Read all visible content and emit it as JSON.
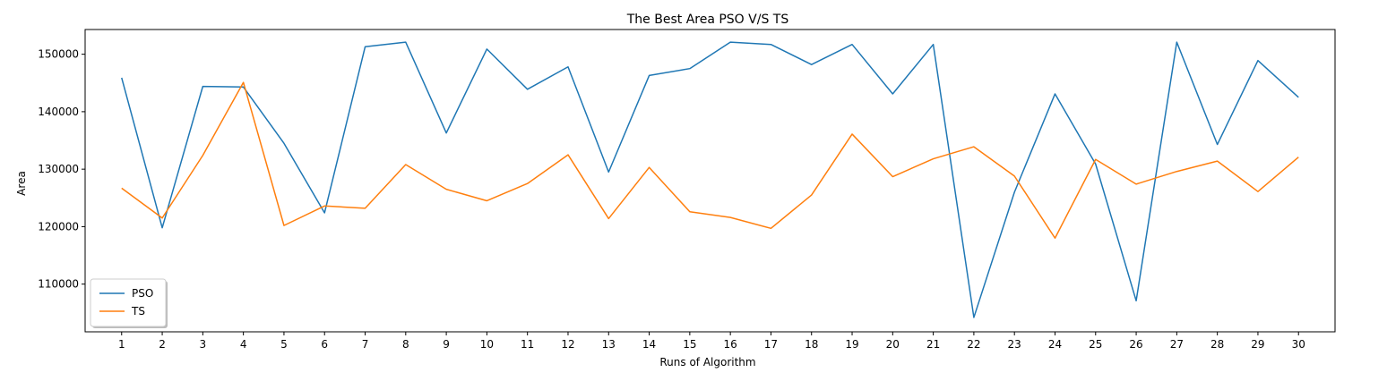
{
  "chart_data": {
    "type": "line",
    "title": "The Best Area PSO V/S TS",
    "xlabel": "Runs of Algorithm",
    "ylabel": "Area",
    "x": [
      1,
      2,
      3,
      4,
      5,
      6,
      7,
      8,
      9,
      10,
      11,
      12,
      13,
      14,
      15,
      16,
      17,
      18,
      19,
      20,
      21,
      22,
      23,
      24,
      25,
      26,
      27,
      28,
      29,
      30
    ],
    "ylim": [
      101700,
      154300
    ],
    "yticks": [
      110000,
      120000,
      130000,
      140000,
      150000
    ],
    "grid": false,
    "legend_position": "lower-left",
    "series": [
      {
        "name": "PSO",
        "color": "#1f77b4",
        "values": [
          145900,
          119800,
          144400,
          144300,
          134500,
          122400,
          151300,
          152100,
          136300,
          150900,
          143900,
          147800,
          129500,
          146300,
          147500,
          152100,
          151700,
          148200,
          151700,
          143100,
          151700,
          104200,
          126000,
          143100,
          130900,
          107100,
          152100,
          134300,
          148900,
          142500
        ]
      },
      {
        "name": "TS",
        "color": "#ff7f0e",
        "values": [
          126700,
          121500,
          132400,
          145100,
          120200,
          123600,
          123200,
          130800,
          126500,
          124500,
          127500,
          132500,
          121400,
          130300,
          122600,
          121600,
          119700,
          125500,
          136100,
          128700,
          131800,
          133900,
          128800,
          118000,
          131700,
          127400,
          129600,
          131400,
          126100,
          132100
        ]
      }
    ]
  }
}
